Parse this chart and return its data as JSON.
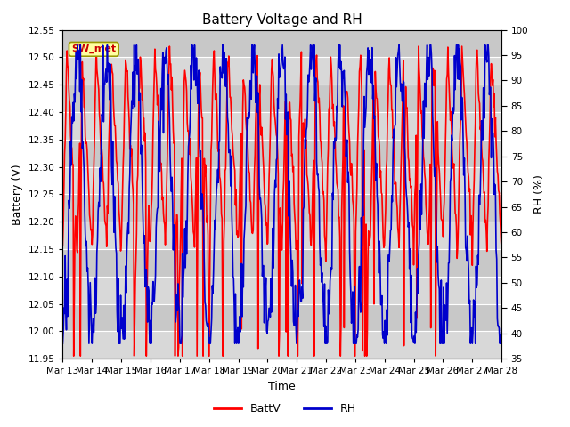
{
  "title": "Battery Voltage and RH",
  "xlabel": "Time",
  "ylabel_left": "Battery (V)",
  "ylabel_right": "RH (%)",
  "ylim_left": [
    11.95,
    12.55
  ],
  "ylim_right": [
    35,
    100
  ],
  "yticks_left": [
    11.95,
    12.0,
    12.05,
    12.1,
    12.15,
    12.2,
    12.25,
    12.3,
    12.35,
    12.4,
    12.45,
    12.5,
    12.55
  ],
  "yticks_right": [
    35,
    40,
    45,
    50,
    55,
    60,
    65,
    70,
    75,
    80,
    85,
    90,
    95,
    100
  ],
  "x_tick_labels": [
    "Mar 13",
    "Mar 14",
    "Mar 15",
    "Mar 16",
    "Mar 17",
    "Mar 18",
    "Mar 19",
    "Mar 20",
    "Mar 21",
    "Mar 22",
    "Mar 23",
    "Mar 24",
    "Mar 25",
    "Mar 26",
    "Mar 27",
    "Mar 28"
  ],
  "legend_label": "SW_met",
  "batt_color": "#ff0000",
  "rh_color": "#0000cc",
  "background_plot_light": "#d8d8d8",
  "background_plot_dark": "#c8c8c8",
  "background_fig": "#ffffff",
  "title_fontsize": 11,
  "axis_fontsize": 9,
  "tick_fontsize": 7.5,
  "line_width": 1.2,
  "seed": 42
}
